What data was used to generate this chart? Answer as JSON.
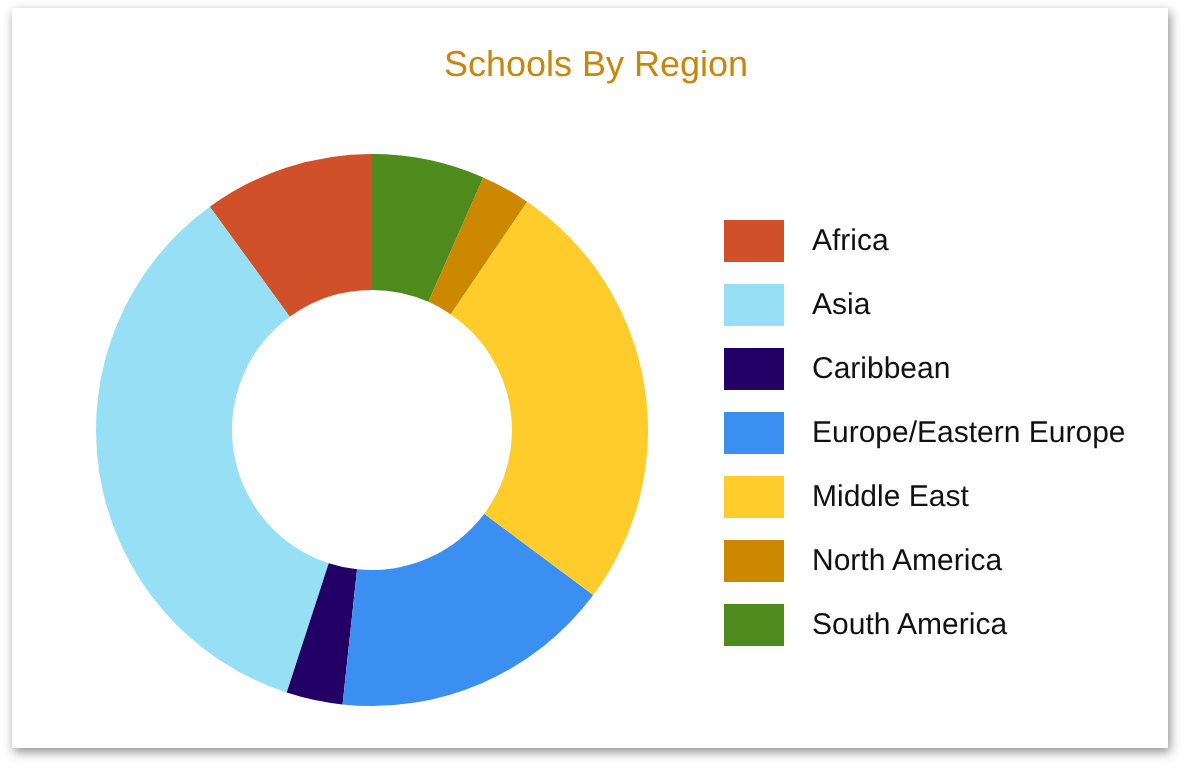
{
  "chart_data": {
    "type": "donut",
    "title": "Schools By Region",
    "categories": [
      "Africa",
      "Asia",
      "Caribbean",
      "Europe/Eastern Europe",
      "Middle East",
      "North America",
      "South America"
    ],
    "values": [
      10,
      35,
      3.3,
      16.5,
      25.7,
      2.9,
      6.6
    ],
    "colors": [
      "#d0502a",
      "#97dff5",
      "#230066",
      "#3a8ff0",
      "#fecd2c",
      "#cc8800",
      "#4f8a1c"
    ],
    "legend": "right"
  }
}
